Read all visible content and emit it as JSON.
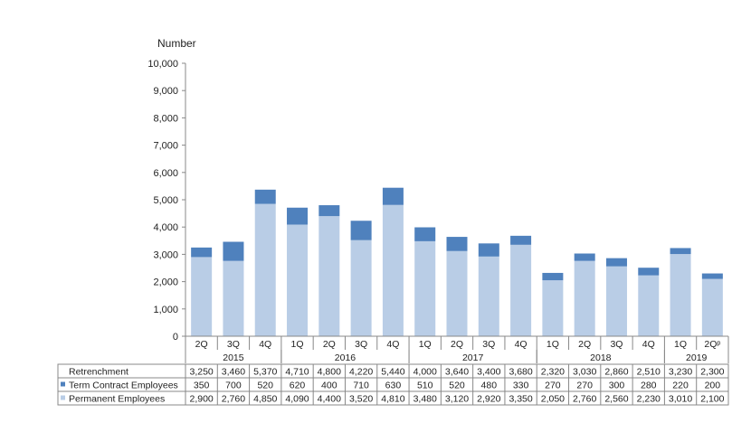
{
  "chart_data": {
    "type": "bar",
    "stacked": true,
    "unit_label": "Number",
    "ylim": [
      0,
      10000
    ],
    "yticks": [
      "10,000",
      "9,000",
      "8,000",
      "7,000",
      "6,000",
      "5,000",
      "4,000",
      "3,000",
      "2,000",
      "1,000",
      "0"
    ],
    "ytick_values": [
      10000,
      9000,
      8000,
      7000,
      6000,
      5000,
      4000,
      3000,
      2000,
      1000,
      0
    ],
    "categories": [
      "2Q",
      "3Q",
      "4Q",
      "1Q",
      "2Q",
      "3Q",
      "4Q",
      "1Q",
      "2Q",
      "3Q",
      "4Q",
      "1Q",
      "2Q",
      "3Q",
      "4Q",
      "1Q",
      "2Qᵖ"
    ],
    "years": [
      {
        "label": "2015",
        "start": 0,
        "count": 3
      },
      {
        "label": "2016",
        "start": 3,
        "count": 4
      },
      {
        "label": "2017",
        "start": 7,
        "count": 4
      },
      {
        "label": "2018",
        "start": 11,
        "count": 4
      },
      {
        "label": "2019",
        "start": 15,
        "count": 2
      }
    ],
    "series": [
      {
        "name": "Permanent Employees",
        "color": "#b9cde6",
        "values": [
          2900,
          2760,
          4850,
          4090,
          4400,
          3520,
          4810,
          3480,
          3120,
          2920,
          3350,
          2050,
          2760,
          2560,
          2230,
          3010,
          2100
        ]
      },
      {
        "name": "Term Contract Employees",
        "color": "#4f81bd",
        "values": [
          350,
          700,
          520,
          620,
          400,
          710,
          630,
          510,
          520,
          480,
          330,
          270,
          270,
          300,
          280,
          220,
          200
        ]
      }
    ],
    "table_rows": [
      {
        "label": "Retrenchment",
        "marker": "",
        "cells": [
          "3,250",
          "3,460",
          "5,370",
          "4,710",
          "4,800",
          "4,220",
          "5,440",
          "4,000",
          "3,640",
          "3,400",
          "3,680",
          "2,320",
          "3,030",
          "2,860",
          "2,510",
          "3,230",
          "2,300"
        ]
      },
      {
        "label": "Term Contract Employees",
        "marker": "#4f81bd",
        "cells": [
          "350",
          "700",
          "520",
          "620",
          "400",
          "710",
          "630",
          "510",
          "520",
          "480",
          "330",
          "270",
          "270",
          "300",
          "280",
          "220",
          "200"
        ]
      },
      {
        "label": "Permanent Employees",
        "marker": "#b9cde6",
        "cells": [
          "2,900",
          "2,760",
          "4,850",
          "4,090",
          "4,400",
          "3,520",
          "4,810",
          "3,480",
          "3,120",
          "2,920",
          "3,350",
          "2,050",
          "2,760",
          "2,560",
          "2,230",
          "3,010",
          "2,100"
        ]
      }
    ]
  }
}
